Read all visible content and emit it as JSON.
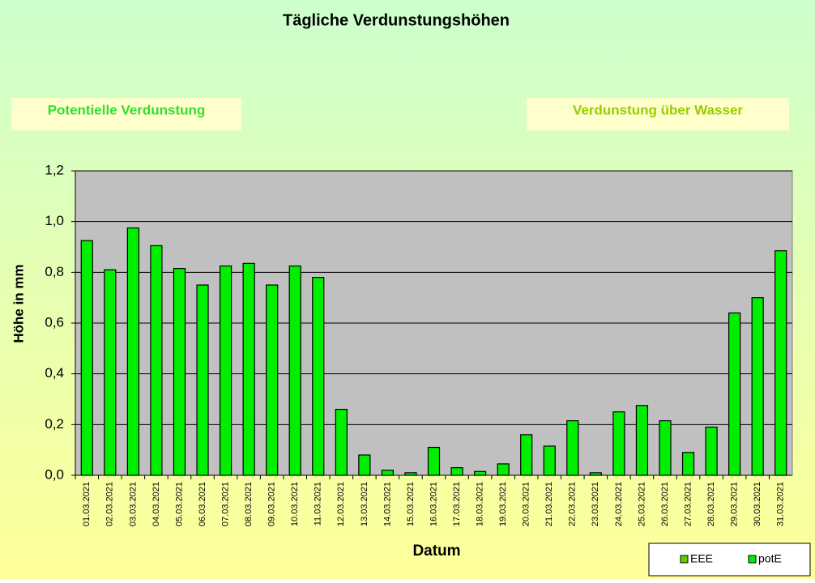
{
  "chart_data": {
    "type": "bar",
    "title": "Tägliche Verdunstungshöhen",
    "annotations": [
      "Potentielle Verdunstung",
      "Verdunstung über Wasser"
    ],
    "y_label": "Höhe in mm",
    "x_label": "Datum",
    "categories": [
      "01.03.2021",
      "02.03.2021",
      "03.03.2021",
      "04.03.2021",
      "05.03.2021",
      "06.03.2021",
      "07.03.2021",
      "08.03.2021",
      "09.03.2021",
      "10.03.2021",
      "11.03.2021",
      "12.03.2021",
      "13.03.2021",
      "14.03.2021",
      "15.03.2021",
      "16.03.2021",
      "17.03.2021",
      "18.03.2021",
      "19.03.2021",
      "20.03.2021",
      "21.03.2021",
      "22.03.2021",
      "23.03.2021",
      "24.03.2021",
      "25.03.2021",
      "26.03.2021",
      "27.03.2021",
      "28.03.2021",
      "29.03.2021",
      "30.03.2021",
      "31.03.2021"
    ],
    "series": [
      {
        "name": "EEE",
        "color": "#66cc00",
        "values": [
          null,
          null,
          null,
          null,
          null,
          null,
          null,
          null,
          null,
          null,
          null,
          null,
          null,
          null,
          null,
          null,
          null,
          null,
          null,
          null,
          null,
          null,
          null,
          null,
          null,
          null,
          null,
          null,
          null,
          null,
          null
        ]
      },
      {
        "name": "potE",
        "color": "#00ee00",
        "values": [
          0.925,
          0.81,
          0.975,
          0.905,
          0.815,
          0.75,
          0.825,
          0.835,
          0.75,
          0.825,
          0.78,
          0.26,
          0.08,
          0.02,
          0.01,
          0.11,
          0.03,
          0.015,
          0.045,
          0.16,
          0.115,
          0.215,
          0.01,
          0.25,
          0.275,
          0.215,
          0.09,
          0.19,
          0.64,
          0.7,
          0.885
        ]
      }
    ],
    "ylim": [
      0,
      1.2
    ],
    "yticks": [
      {
        "value": 0,
        "label": "0,0"
      },
      {
        "value": 0.2,
        "label": "0,2"
      },
      {
        "value": 0.4,
        "label": "0,4"
      },
      {
        "value": 0.6,
        "label": "0,6"
      },
      {
        "value": 0.8,
        "label": "0,8"
      },
      {
        "value": 1.0,
        "label": "1,0"
      },
      {
        "value": 1.2,
        "label": "1,2"
      }
    ],
    "grid": true
  }
}
